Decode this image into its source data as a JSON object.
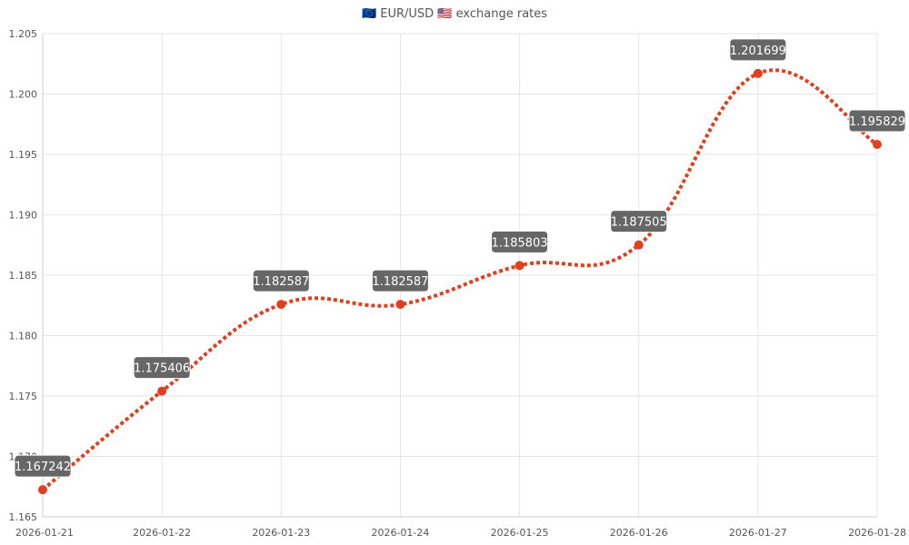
{
  "chart_data": {
    "type": "line",
    "title": "🇪🇺 EUR/USD 🇺🇸 exchange rates",
    "x": [
      "2026-01-21",
      "2026-01-22",
      "2026-01-23",
      "2026-01-24",
      "2026-01-25",
      "2026-01-26",
      "2026-01-27",
      "2026-01-28"
    ],
    "series": [
      {
        "values": [
          1.167242,
          1.175406,
          1.182587,
          1.182587,
          1.185803,
          1.187505,
          1.201699,
          1.195829
        ]
      }
    ],
    "data_labels": [
      "1.167242",
      "1.175406",
      "1.182587",
      "1.182587",
      "1.185803",
      "1.187505",
      "1.201699",
      "1.195829"
    ],
    "ylim": [
      1.165,
      1.205
    ],
    "y_ticks": [
      1.165,
      1.17,
      1.175,
      1.18,
      1.185,
      1.19,
      1.195,
      1.2,
      1.205
    ],
    "y_tick_labels": [
      "1.165",
      "1.170",
      "1.175",
      "1.180",
      "1.185",
      "1.190",
      "1.195",
      "1.200",
      "1.205"
    ],
    "grid": true,
    "line_style": "dotted",
    "colors": {
      "line": "#e0401f",
      "point": "#e0401f",
      "label_bg": "#666666",
      "grid": "#e5e5e5"
    }
  }
}
